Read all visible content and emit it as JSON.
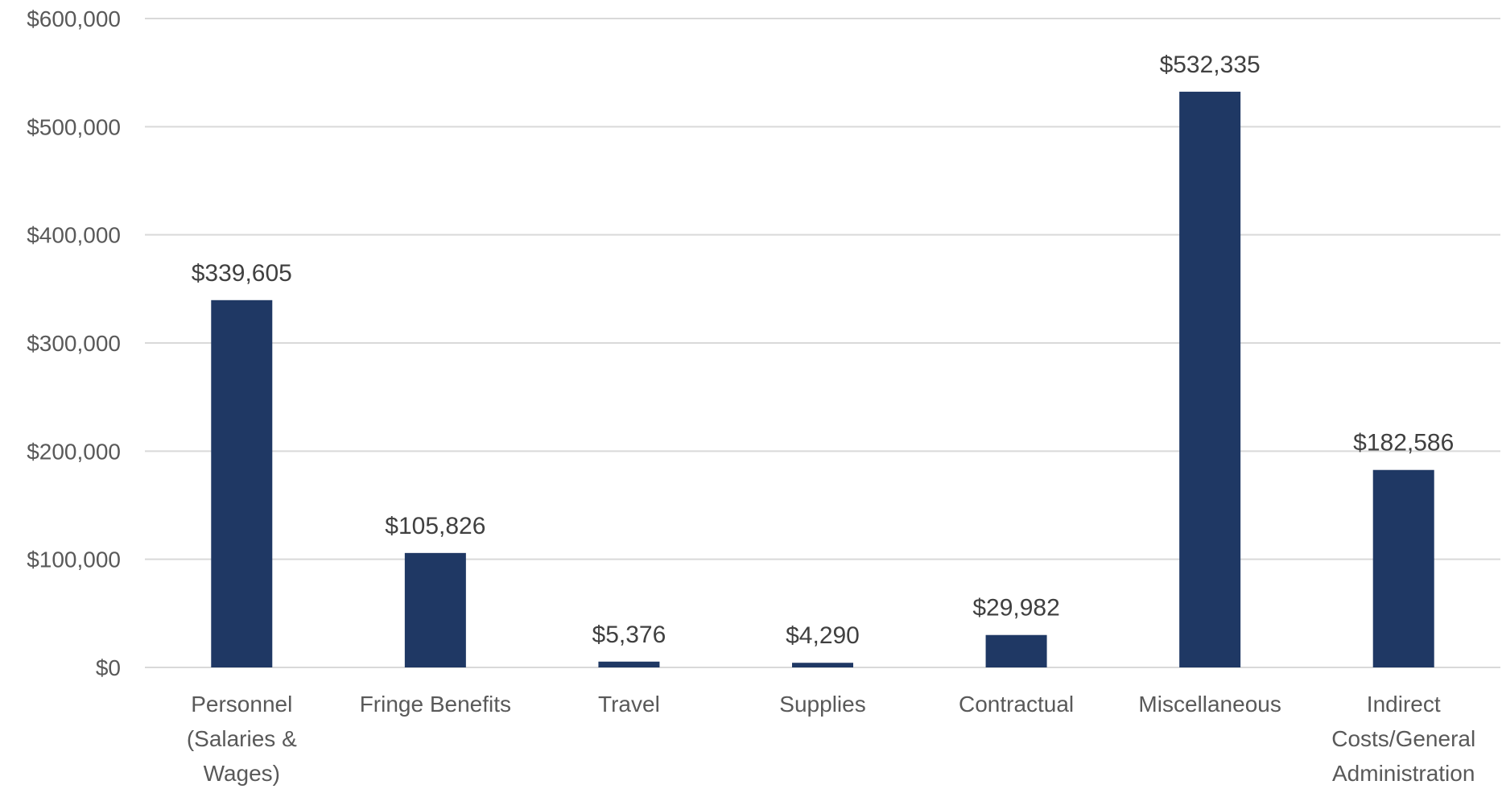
{
  "chart_data": {
    "type": "bar",
    "title": "",
    "xlabel": "",
    "ylabel": "",
    "categories": [
      [
        "Personnel",
        "(Salaries &",
        "Wages)"
      ],
      [
        "Fringe Benefits"
      ],
      [
        "Travel"
      ],
      [
        "Supplies"
      ],
      [
        "Contractual"
      ],
      [
        "Miscellaneous"
      ],
      [
        "Indirect",
        "Costs/General",
        "Administration"
      ]
    ],
    "values": [
      339605,
      105826,
      5376,
      4290,
      29982,
      532335,
      182586
    ],
    "data_labels": [
      "$339,605",
      "$105,826",
      "$5,376",
      "$4,290",
      "$29,982",
      "$532,335",
      "$182,586"
    ],
    "y_ticks": [
      0,
      100000,
      200000,
      300000,
      400000,
      500000,
      600000
    ],
    "y_tick_labels": [
      "$0",
      "$100,000",
      "$200,000",
      "$300,000",
      "$400,000",
      "$500,000",
      "$600,000"
    ],
    "ylim": [
      0,
      600000
    ],
    "grid": true,
    "legend": "none",
    "bar_color": "#1f3864"
  }
}
